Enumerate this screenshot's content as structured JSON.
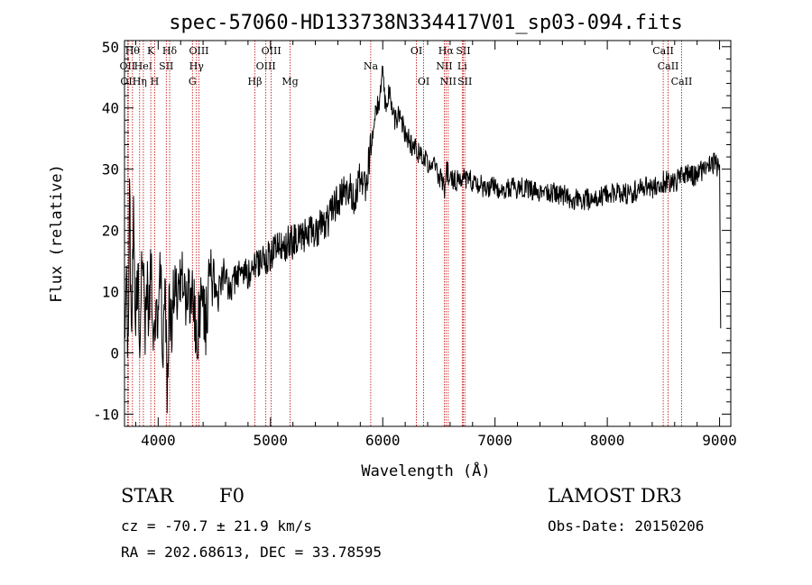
{
  "chart_data": {
    "type": "line",
    "title": "spec-57060-HD133738N334417V01_sp03-094.fits",
    "xlabel": "Wavelength (Å)",
    "ylabel": "Flux (relative)",
    "xlim": [
      3700,
      9100
    ],
    "ylim": [
      -12,
      51
    ],
    "xticks": [
      4000,
      5000,
      6000,
      7000,
      8000,
      9000
    ],
    "yticks": [
      -10,
      0,
      10,
      20,
      30,
      40,
      50
    ],
    "series": [
      {
        "name": "spectrum",
        "x": [
          3700,
          3715,
          3730,
          3745,
          3760,
          3780,
          3800,
          3820,
          3840,
          3860,
          3880,
          3900,
          3920,
          3940,
          3960,
          3980,
          4000,
          4020,
          4040,
          4060,
          4080,
          4100,
          4120,
          4150,
          4180,
          4210,
          4250,
          4300,
          4340,
          4380,
          4420,
          4470,
          4520,
          4580,
          4650,
          4720,
          4800,
          4850,
          4900,
          4950,
          5000,
          5050,
          5100,
          5150,
          5200,
          5250,
          5300,
          5350,
          5400,
          5450,
          5500,
          5550,
          5600,
          5650,
          5700,
          5750,
          5800,
          5850,
          5880,
          5900,
          5920,
          5950,
          5980,
          6000,
          6030,
          6060,
          6100,
          6150,
          6200,
          6250,
          6300,
          6350,
          6400,
          6450,
          6500,
          6550,
          6570,
          6600,
          6650,
          6700,
          6750,
          6800,
          6900,
          7000,
          7100,
          7200,
          7300,
          7400,
          7500,
          7600,
          7700,
          7800,
          7900,
          8000,
          8100,
          8200,
          8300,
          8400,
          8500,
          8600,
          8700,
          8750,
          8800,
          8850,
          8900,
          8950,
          8990,
          9000,
          9010
        ],
        "y": [
          2,
          18,
          -2,
          28,
          4,
          22,
          8,
          14,
          -1,
          20,
          3,
          12,
          6,
          16,
          -2,
          10,
          4,
          15,
          2,
          9,
          -6,
          8,
          5,
          12,
          7,
          14,
          6,
          12,
          0,
          10,
          5,
          13,
          8,
          13,
          10,
          14,
          13,
          15,
          14,
          15,
          16,
          17,
          17,
          18,
          18,
          19,
          19,
          20,
          19,
          21,
          21,
          23,
          25,
          26,
          27,
          25,
          29,
          27,
          32,
          35,
          38,
          40,
          42,
          46,
          39,
          43,
          38,
          39,
          36,
          34,
          33,
          32,
          31,
          31,
          29,
          27,
          30,
          28,
          28,
          29,
          28,
          28,
          27,
          27,
          27,
          27,
          27,
          26,
          26,
          26,
          25,
          25,
          25,
          26,
          26,
          26,
          27,
          27,
          28,
          28,
          29,
          29,
          29,
          30,
          31,
          31,
          30,
          29,
          4
        ]
      }
    ],
    "spectral_lines": [
      {
        "x": 3727,
        "label": "OII",
        "row": 1
      },
      {
        "x": 3734,
        "label": "OII",
        "row": 2
      },
      {
        "x": 3771,
        "label": "Hθ",
        "row": 0
      },
      {
        "x": 3835,
        "label": "Hη",
        "row": 2
      },
      {
        "x": 3868,
        "label": "HeI",
        "row": 1
      },
      {
        "x": 3934,
        "label": "K",
        "row": 0
      },
      {
        "x": 3969,
        "label": "H",
        "row": 2
      },
      {
        "x": 4072,
        "label": "SII",
        "row": 1
      },
      {
        "x": 4102,
        "label": "Hδ",
        "row": 0
      },
      {
        "x": 4305,
        "label": "G",
        "row": 2
      },
      {
        "x": 4341,
        "label": "Hγ",
        "row": 1
      },
      {
        "x": 4363,
        "label": "OIII",
        "row": 0
      },
      {
        "x": 4861,
        "label": "Hβ",
        "row": 2
      },
      {
        "x": 4959,
        "label": "OIII",
        "row": 1
      },
      {
        "x": 5007,
        "label": "OIII",
        "row": 0
      },
      {
        "x": 5175,
        "label": "Mg",
        "row": 2
      },
      {
        "x": 5893,
        "label": "Na",
        "row": 1
      },
      {
        "x": 6300,
        "label": "OI",
        "row": 0
      },
      {
        "x": 6364,
        "label": "OI",
        "row": 2
      },
      {
        "x": 6548,
        "label": "NII",
        "row": 1
      },
      {
        "x": 6563,
        "label": "Hα",
        "row": 0
      },
      {
        "x": 6583,
        "label": "NII",
        "row": 2
      },
      {
        "x": 6708,
        "label": "Li",
        "row": 1
      },
      {
        "x": 6717,
        "label": "SII",
        "row": 0
      },
      {
        "x": 6731,
        "label": "SII",
        "row": 2
      },
      {
        "x": 8498,
        "label": "CaII",
        "row": 0
      },
      {
        "x": 8542,
        "label": "CaII",
        "row": 1
      },
      {
        "x": 8662,
        "label": "CaII",
        "row": 2
      }
    ]
  },
  "info": {
    "class": "STAR",
    "subclass": "F0",
    "survey": "LAMOST DR3",
    "cz": "cz = -70.7 ± 21.9 km/s",
    "obs_date": "Obs-Date: 20150206",
    "coords": "RA = 202.68613, DEC =  33.78595"
  },
  "colors": {
    "line_marker": "#c00000",
    "spectrum": "#000000"
  }
}
